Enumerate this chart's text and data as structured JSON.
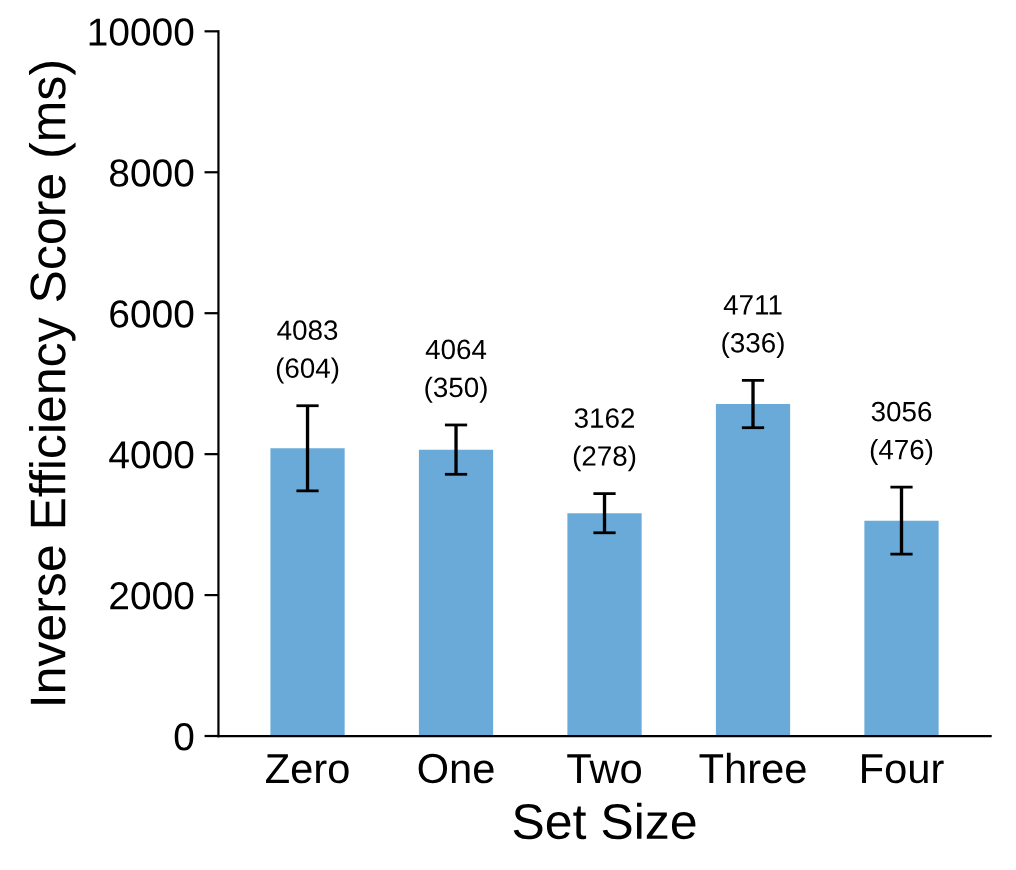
{
  "chart_data": {
    "type": "bar",
    "xlabel": "Set Size",
    "ylabel": "Inverse Efficiency Score (ms)",
    "categories": [
      "Zero",
      "One",
      "Two",
      "Three",
      "Four"
    ],
    "values": [
      4083,
      4064,
      3162,
      4711,
      3056
    ],
    "errors": [
      604,
      350,
      278,
      336,
      476
    ],
    "value_labels": [
      "4083\n(604)",
      "4064\n(350)",
      "3162\n(278)",
      "4711\n(336)",
      "3056\n(476)"
    ],
    "color": "#6aaad9",
    "ylim": [
      0,
      10000
    ],
    "yticks": [
      0,
      2000,
      4000,
      6000,
      8000,
      10000
    ],
    "grid": false,
    "legend": false
  }
}
